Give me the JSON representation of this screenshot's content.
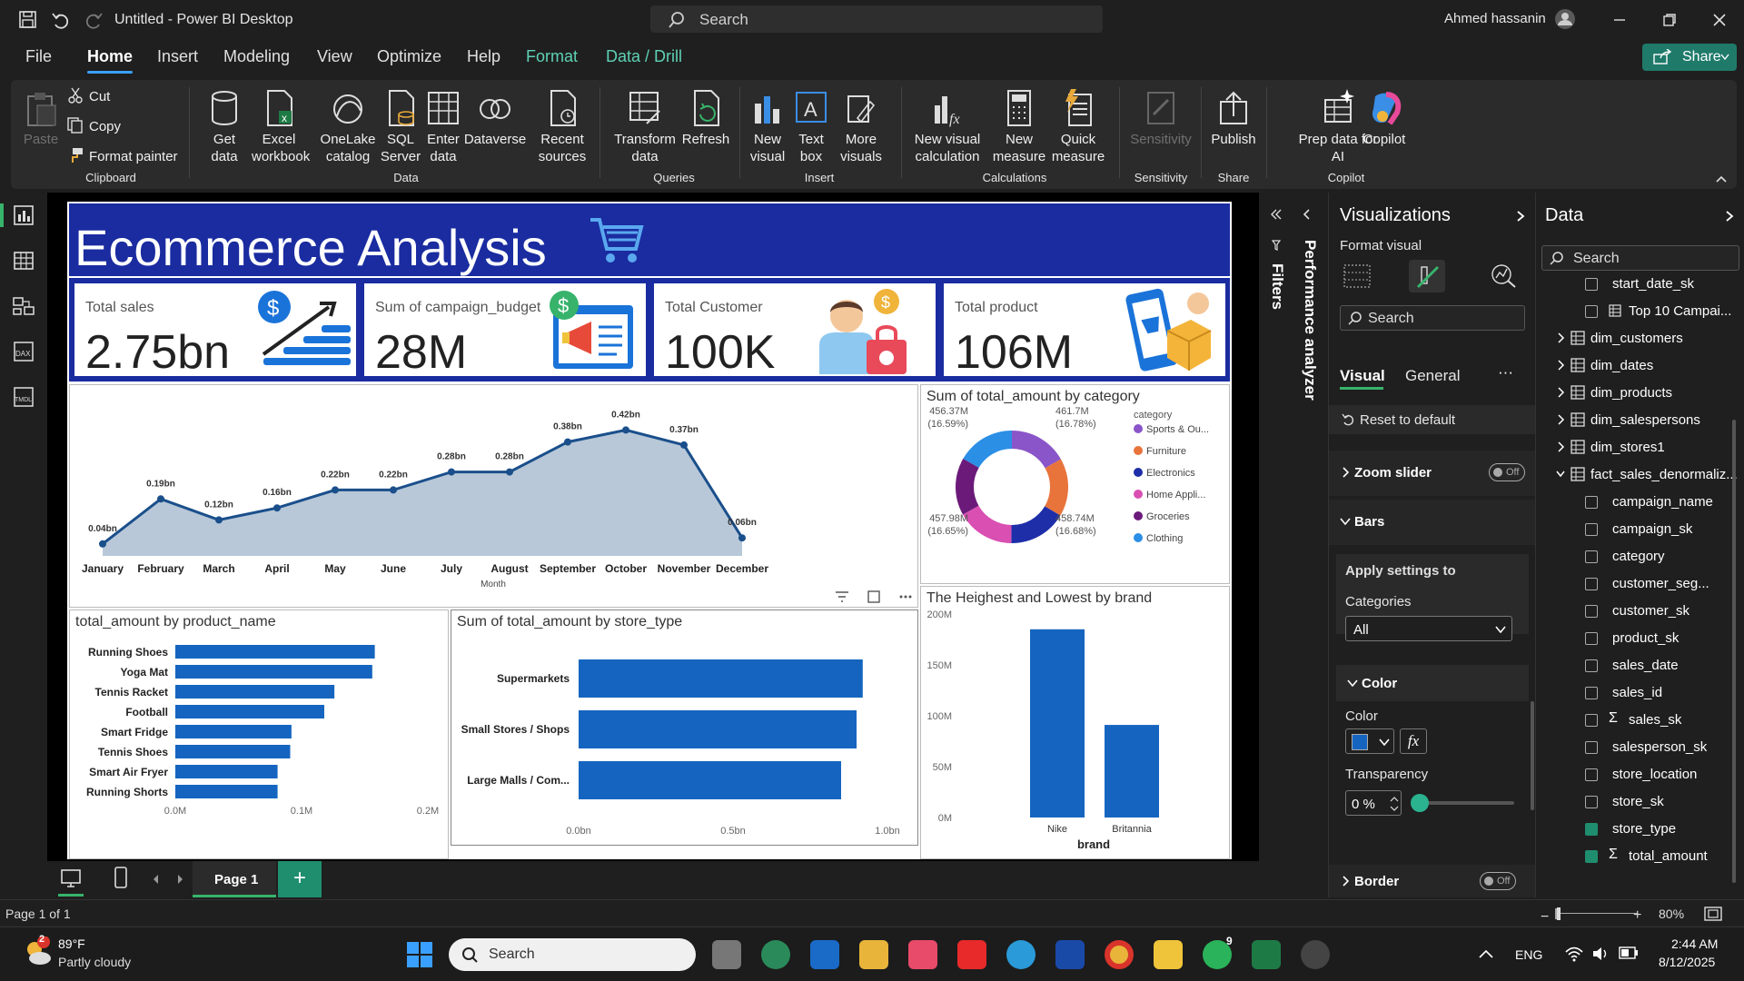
{
  "window": {
    "title": "Untitled - Power BI Desktop",
    "search": "Search",
    "user": "Ahmed hassanin"
  },
  "menu": [
    "File",
    "Home",
    "Insert",
    "Modeling",
    "View",
    "Optimize",
    "Help",
    "Format",
    "Data / Drill"
  ],
  "share": "Share",
  "ribbon": {
    "paste": "Paste",
    "cut": "Cut",
    "copy": "Copy",
    "format_painter": "Format painter",
    "clipboard": "Clipboard",
    "get_data": [
      "Get",
      "data"
    ],
    "excel": [
      "Excel",
      "workbook"
    ],
    "onelake": [
      "OneLake",
      "catalog"
    ],
    "sql": [
      "SQL",
      "Server"
    ],
    "enter": [
      "Enter",
      "data"
    ],
    "dataverse": "Dataverse",
    "recent": [
      "Recent",
      "sources"
    ],
    "data_group": "Data",
    "transform": [
      "Transform",
      "data"
    ],
    "refresh": "Refresh",
    "queries": "Queries",
    "new_visual": [
      "New",
      "visual"
    ],
    "text_box": [
      "Text",
      "box"
    ],
    "more_visuals": [
      "More",
      "visuals"
    ],
    "insert": "Insert",
    "new_visual_calc": [
      "New visual",
      "calculation"
    ],
    "new_measure": [
      "New",
      "measure"
    ],
    "quick_measure": [
      "Quick",
      "measure"
    ],
    "calculations": "Calculations",
    "sensitivity": "Sensitivity",
    "sensitivity_group": "Sensitivity",
    "publish": "Publish",
    "share_group": "Share",
    "prep": [
      "Prep data for",
      "AI"
    ],
    "copilot": "Copilot",
    "copilot_group": "Copilot"
  },
  "report": {
    "title": "Ecommerce Analysis",
    "cards": [
      {
        "label": "Total sales",
        "value": "2.75bn"
      },
      {
        "label": "Sum of campaign_budget",
        "value": "28M"
      },
      {
        "label": "Total Customer",
        "value": "100K"
      },
      {
        "label": "Total product",
        "value": "106M"
      }
    ]
  },
  "chart_data": [
    {
      "type": "area",
      "xlabel": "Month",
      "x": [
        "January",
        "February",
        "March",
        "April",
        "May",
        "June",
        "July",
        "August",
        "September",
        "October",
        "November",
        "December"
      ],
      "values": [
        0.04,
        0.19,
        0.12,
        0.16,
        0.22,
        0.22,
        0.28,
        0.28,
        0.38,
        0.42,
        0.37,
        0.06
      ],
      "labels": [
        "0.04bn",
        "0.19bn",
        "0.12bn",
        "0.16bn",
        "0.22bn",
        "0.22bn",
        "0.28bn",
        "0.28bn",
        "0.38bn",
        "0.42bn",
        "0.37bn",
        "0.06bn"
      ],
      "color": "#1a4f8b"
    },
    {
      "type": "pie",
      "title": "Sum of total_amount by category",
      "legend_title": "category",
      "categories": [
        "Sports & Ou...",
        "Furniture",
        "Electronics",
        "Home Appli...",
        "Groceries",
        "Clothing"
      ],
      "values": [
        461.7,
        457.98,
        458.74,
        456.37,
        455,
        457
      ],
      "colors": [
        "#8a55c8",
        "#e8743b",
        "#1e2ea8",
        "#d94fb2",
        "#6b1a7a",
        "#2b8fe6"
      ],
      "slice_labels": [
        [
          "456.37M",
          "(16.59%)"
        ],
        [
          "461.7M",
          "(16.78%)"
        ],
        [
          "457.98M",
          "(16.65%)"
        ],
        [
          "458.74M",
          "(16.68%)"
        ]
      ]
    },
    {
      "type": "bar",
      "title": "total_amount by product_name",
      "categories": [
        "Running Shoes",
        "Yoga Mat",
        "Tennis Racket",
        "Football",
        "Smart Fridge",
        "Tennis Shoes",
        "Smart Air Fryer",
        "Running Shorts"
      ],
      "values": [
        0.158,
        0.156,
        0.126,
        0.118,
        0.092,
        0.091,
        0.081,
        0.081
      ],
      "xticks": [
        "0.0M",
        "0.1M",
        "0.2M"
      ],
      "xlim": [
        0,
        0.2
      ],
      "color": "#1565c0"
    },
    {
      "type": "bar",
      "title": "Sum of total_amount by store_type",
      "categories": [
        "Supermarkets",
        "Small Stores / Shops",
        "Large Malls / Com..."
      ],
      "values": [
        0.92,
        0.9,
        0.85
      ],
      "xticks": [
        "0.0bn",
        "0.5bn",
        "1.0bn"
      ],
      "xlim": [
        0,
        1
      ],
      "color": "#1565c0"
    },
    {
      "type": "bar",
      "title": "The Heighest and Lowest by brand",
      "xlabel": "brand",
      "categories": [
        "Nike",
        "Britannia"
      ],
      "values": [
        185,
        91
      ],
      "yticks": [
        "0M",
        "50M",
        "100M",
        "150M",
        "200M"
      ],
      "ylim": [
        0,
        200
      ],
      "color": "#1565c0"
    }
  ],
  "filters": "Filters",
  "perf": "Performance analyzer",
  "viz": {
    "title": "Visualizations",
    "format_visual": "Format visual",
    "search": "Search",
    "tab_visual": "Visual",
    "tab_general": "General",
    "reset": "Reset to default",
    "zoom": "Zoom slider",
    "bars": "Bars",
    "apply": "Apply settings to",
    "categories_label": "Categories",
    "categories_value": "All",
    "color_section": "Color",
    "color_label": "Color",
    "transparency": "Transparency",
    "transparency_value": "0 %",
    "border": "Border",
    "off": "Off",
    "color": "#1565c0"
  },
  "data": {
    "title": "Data",
    "search": "Search",
    "items": [
      {
        "name": "start_date_sk",
        "type": "field",
        "checked": false
      },
      {
        "name": "Top 10 Campai...",
        "type": "table-field",
        "checked": false
      },
      {
        "name": "dim_customers",
        "type": "table"
      },
      {
        "name": "dim_dates",
        "type": "table"
      },
      {
        "name": "dim_products",
        "type": "table"
      },
      {
        "name": "dim_salespersons",
        "type": "table"
      },
      {
        "name": "dim_stores1",
        "type": "table"
      },
      {
        "name": "fact_sales_denormaliz...",
        "type": "table-open"
      },
      {
        "name": "campaign_name",
        "type": "field",
        "checked": false
      },
      {
        "name": "campaign_sk",
        "type": "field",
        "checked": false
      },
      {
        "name": "category",
        "type": "field",
        "checked": false
      },
      {
        "name": "customer_seg...",
        "type": "field",
        "checked": false
      },
      {
        "name": "customer_sk",
        "type": "field",
        "checked": false
      },
      {
        "name": "product_sk",
        "type": "field",
        "checked": false
      },
      {
        "name": "sales_date",
        "type": "field",
        "checked": false
      },
      {
        "name": "sales_id",
        "type": "field",
        "checked": false
      },
      {
        "name": "sales_sk",
        "type": "sigma",
        "checked": false
      },
      {
        "name": "salesperson_sk",
        "type": "field",
        "checked": false
      },
      {
        "name": "store_location",
        "type": "field",
        "checked": false
      },
      {
        "name": "store_sk",
        "type": "field",
        "checked": false
      },
      {
        "name": "store_type",
        "type": "field",
        "checked": true
      },
      {
        "name": "total_amount",
        "type": "sigma",
        "checked": true
      }
    ]
  },
  "pagebar": {
    "page": "Page 1",
    "status": "Page 1 of 1",
    "zoom": "80%"
  },
  "taskbar": {
    "temp": "89°F",
    "weather": "Partly cloudy",
    "weather_badge": "2",
    "search": "Search",
    "lang": "ENG",
    "time": "2:44 AM",
    "date": "8/12/2025",
    "whatsapp_badge": "9"
  }
}
